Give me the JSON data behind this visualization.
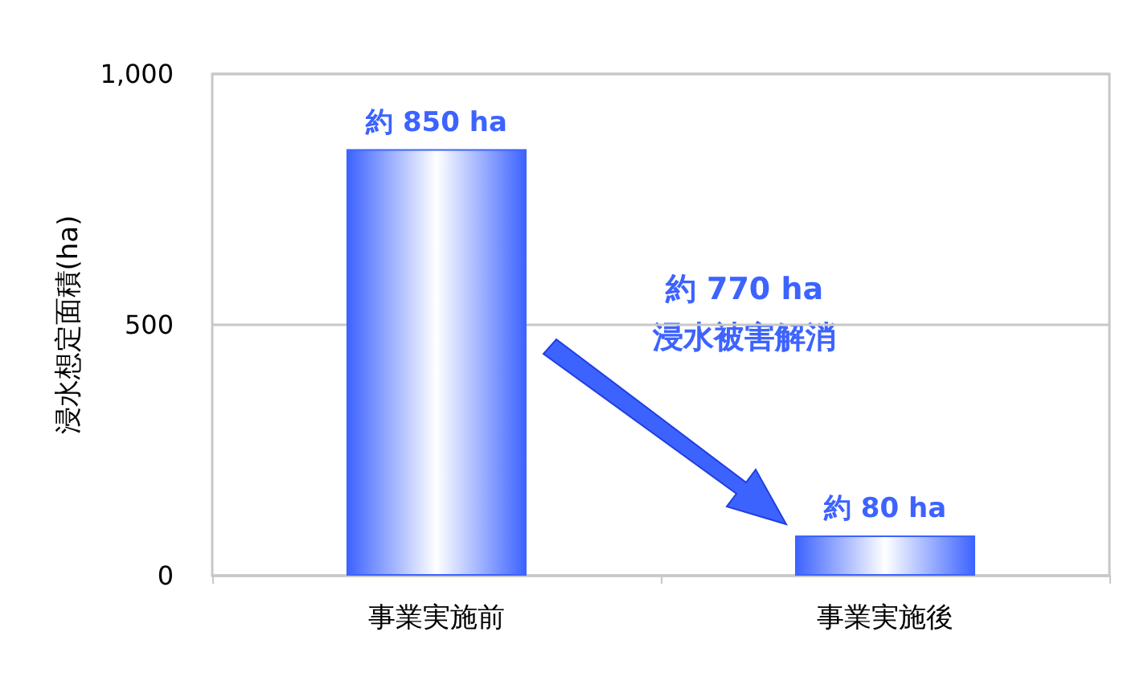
{
  "chart_data": {
    "type": "bar",
    "ylabel": "浸水想定面積(ha)",
    "categories": [
      "事業実施前",
      "事業実施後"
    ],
    "values": [
      850,
      80
    ],
    "value_labels": [
      "約 850 ha",
      "約 80 ha"
    ],
    "color": "#3d63ff",
    "ylim": [
      0,
      1000
    ],
    "yticks": [
      0,
      500,
      {
        "value": 1000,
        "label": "1,000"
      }
    ],
    "grid": "y",
    "annotations": [
      "約 770 ha\n浸水被害解消"
    ]
  }
}
